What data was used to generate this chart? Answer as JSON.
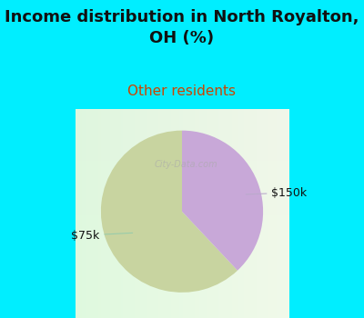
{
  "title": "Income distribution in North Royalton,\nOH (%)",
  "subtitle": "Other residents",
  "title_color": "#111111",
  "subtitle_color": "#cc4400",
  "background_color": "#00eeff",
  "pie_bg_top": "#f0fff0",
  "pie_bg_bottom": "#c8ffe8",
  "slices": [
    {
      "label": "$75k",
      "value": 62,
      "color": "#c8d4a0"
    },
    {
      "label": "$150k",
      "value": 38,
      "color": "#c8a8d8"
    }
  ],
  "label_color": "#111111",
  "label_fontsize": 9,
  "title_fontsize": 13,
  "subtitle_fontsize": 11,
  "startangle": 90,
  "watermark": "City-Data.com"
}
